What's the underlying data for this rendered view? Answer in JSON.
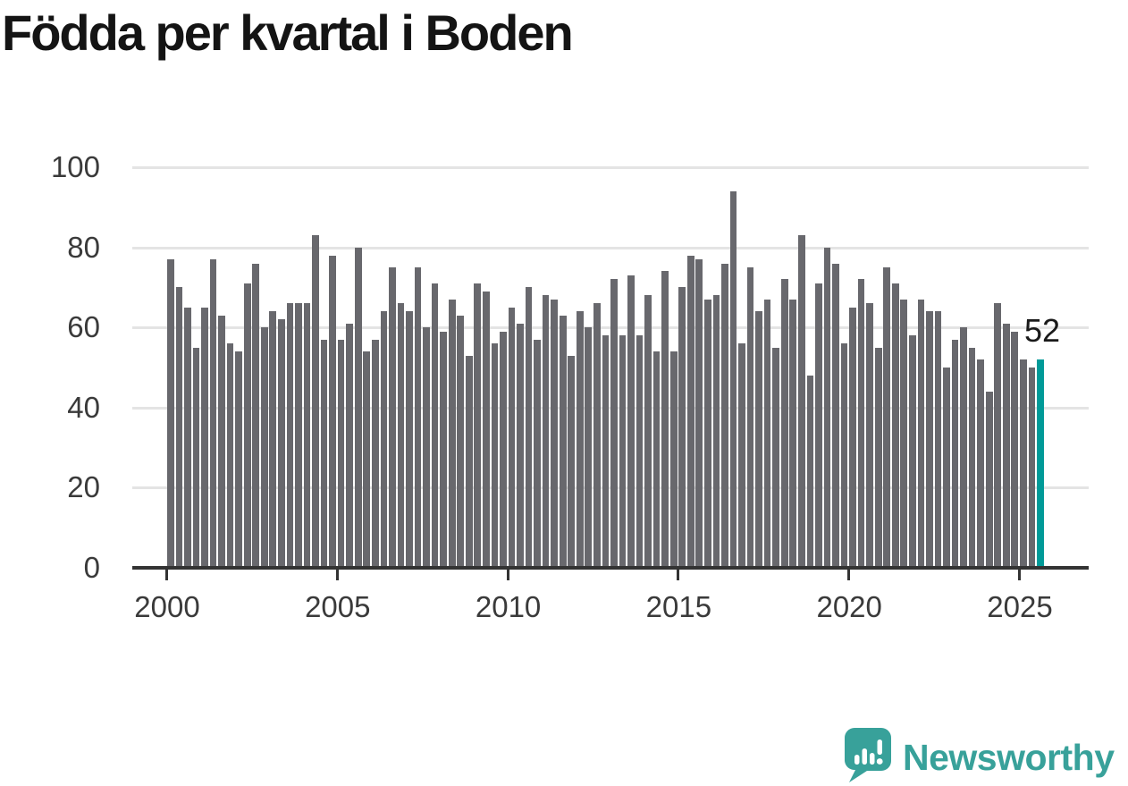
{
  "header": {
    "title": "Födda per kvartal i Boden"
  },
  "chart_data": {
    "type": "bar",
    "title": "Födda per kvartal i Boden",
    "x_start": "2000-Q1",
    "x_end": "2025-Q3",
    "frequency": "quarterly",
    "values": [
      77,
      70,
      65,
      55,
      65,
      77,
      63,
      56,
      54,
      71,
      76,
      60,
      64,
      62,
      66,
      66,
      66,
      83,
      57,
      78,
      57,
      61,
      80,
      54,
      57,
      64,
      75,
      66,
      64,
      75,
      60,
      71,
      59,
      67,
      63,
      53,
      71,
      69,
      56,
      59,
      65,
      61,
      70,
      57,
      68,
      67,
      63,
      53,
      64,
      60,
      66,
      58,
      72,
      58,
      73,
      58,
      68,
      54,
      74,
      54,
      70,
      78,
      77,
      67,
      68,
      76,
      94,
      56,
      75,
      64,
      67,
      55,
      72,
      67,
      83,
      48,
      71,
      80,
      76,
      56,
      65,
      72,
      66,
      55,
      75,
      71,
      67,
      58,
      67,
      64,
      64,
      50,
      57,
      60,
      55,
      52,
      44,
      66,
      61,
      59,
      52,
      50,
      52
    ],
    "ylim": [
      0,
      100
    ],
    "y_ticks": [
      0,
      20,
      40,
      60,
      80,
      100
    ],
    "x_tick_labels": [
      "2000",
      "2005",
      "2010",
      "2015",
      "2020",
      "2025"
    ],
    "grid": "horizontal",
    "legend": "none",
    "highlight_index": 102,
    "highlight_label": "52"
  },
  "annotation": {
    "last_value": "52"
  },
  "footer": {
    "brand": "Newsworthy"
  },
  "colors": {
    "bar": "#68686d",
    "highlight": "#009a98",
    "gridline": "#e4e4e4",
    "axis": "#333333",
    "tick_label": "#3a3a3a",
    "title": "#141414",
    "annotation": "#1a1a1a",
    "brand": "#38a19a"
  }
}
